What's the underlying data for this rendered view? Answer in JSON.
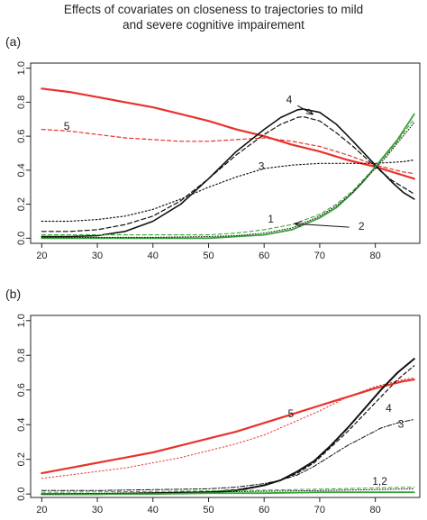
{
  "title_lines": [
    "Effects of covariates on closeness to trajectories to mild",
    "and severe cognitive impairement"
  ],
  "chart_data": [
    {
      "panel": "(a)",
      "type": "line",
      "xlim": [
        18,
        88
      ],
      "ylim": [
        -0.03,
        1.03
      ],
      "xticks": [
        20,
        30,
        40,
        50,
        60,
        70,
        80
      ],
      "yticks": [
        0.0,
        0.2,
        0.4,
        0.6,
        0.8,
        1.0
      ],
      "ytick_labels": [
        "0.0",
        "0.2",
        "0.4",
        "0.6",
        "0.8",
        "1.0"
      ],
      "series": [
        {
          "color": "#e8322b",
          "dash": "solid",
          "width": 2.2,
          "x": [
            20,
            25,
            30,
            35,
            40,
            45,
            50,
            55,
            60,
            65,
            70,
            75,
            80,
            85,
            87
          ],
          "y": [
            0.88,
            0.86,
            0.83,
            0.8,
            0.77,
            0.73,
            0.69,
            0.64,
            0.6,
            0.55,
            0.51,
            0.46,
            0.42,
            0.37,
            0.35
          ]
        },
        {
          "color": "#e8322b",
          "dash": "4,3",
          "width": 1.2,
          "x": [
            20,
            25,
            30,
            35,
            40,
            45,
            50,
            55,
            60,
            65,
            70,
            75,
            80,
            85,
            87
          ],
          "y": [
            0.64,
            0.63,
            0.61,
            0.59,
            0.58,
            0.57,
            0.57,
            0.58,
            0.59,
            0.57,
            0.54,
            0.49,
            0.43,
            0.39,
            0.38
          ]
        },
        {
          "color": "#111111",
          "dash": "solid",
          "width": 1.6,
          "x": [
            20,
            25,
            30,
            35,
            40,
            45,
            50,
            55,
            60,
            63,
            66,
            67,
            70,
            73,
            76,
            80,
            83,
            85,
            87
          ],
          "y": [
            0.01,
            0.01,
            0.015,
            0.04,
            0.1,
            0.2,
            0.35,
            0.51,
            0.64,
            0.71,
            0.755,
            0.76,
            0.74,
            0.67,
            0.57,
            0.43,
            0.33,
            0.27,
            0.23
          ]
        },
        {
          "color": "#111111",
          "dash": "5,3",
          "width": 1.2,
          "x": [
            20,
            25,
            30,
            35,
            40,
            45,
            50,
            55,
            60,
            63,
            66,
            67,
            70,
            73,
            76,
            80,
            83,
            85,
            87
          ],
          "y": [
            0.04,
            0.04,
            0.05,
            0.08,
            0.13,
            0.22,
            0.35,
            0.49,
            0.61,
            0.67,
            0.71,
            0.715,
            0.69,
            0.62,
            0.54,
            0.42,
            0.34,
            0.3,
            0.26
          ]
        },
        {
          "color": "#111111",
          "dash": "1.5,2.5",
          "width": 1.2,
          "x": [
            20,
            25,
            30,
            35,
            40,
            45,
            50,
            55,
            60,
            65,
            70,
            75,
            80,
            85,
            87
          ],
          "y": [
            0.1,
            0.1,
            0.11,
            0.13,
            0.17,
            0.23,
            0.3,
            0.36,
            0.41,
            0.43,
            0.44,
            0.44,
            0.44,
            0.45,
            0.46
          ]
        },
        {
          "color": "#3aa33a",
          "dash": "solid",
          "width": 1.8,
          "x": [
            20,
            30,
            40,
            50,
            55,
            60,
            65,
            70,
            73,
            76,
            78,
            80,
            82,
            84,
            86,
            87
          ],
          "y": [
            0.0,
            0.0,
            0.0,
            0.0,
            0.01,
            0.02,
            0.05,
            0.12,
            0.18,
            0.27,
            0.34,
            0.42,
            0.5,
            0.58,
            0.68,
            0.73
          ]
        },
        {
          "color": "#3aa33a",
          "dash": "4,3",
          "width": 1.1,
          "x": [
            20,
            30,
            40,
            50,
            55,
            60,
            65,
            70,
            73,
            76,
            78,
            80,
            82,
            84,
            86,
            87
          ],
          "y": [
            0.02,
            0.02,
            0.02,
            0.02,
            0.03,
            0.05,
            0.08,
            0.14,
            0.2,
            0.28,
            0.35,
            0.42,
            0.49,
            0.57,
            0.66,
            0.7
          ]
        },
        {
          "color": "#111111",
          "dash": "1,2",
          "width": 1.0,
          "x": [
            20,
            30,
            40,
            50,
            55,
            60,
            65,
            70,
            73,
            76,
            78,
            80,
            82,
            84,
            86,
            87
          ],
          "y": [
            0.005,
            0.005,
            0.005,
            0.01,
            0.015,
            0.03,
            0.06,
            0.13,
            0.19,
            0.27,
            0.34,
            0.41,
            0.48,
            0.56,
            0.64,
            0.68
          ]
        }
      ],
      "annotations": [
        {
          "text": "5",
          "x": 24.5,
          "y": 0.655
        },
        {
          "text": "4",
          "x": 64.5,
          "y": 0.81
        },
        {
          "text": "3",
          "x": 59.5,
          "y": 0.42
        },
        {
          "text": "1",
          "x": 61.2,
          "y": 0.11
        },
        {
          "text": "2",
          "x": 77.5,
          "y": 0.065
        }
      ],
      "arrows": [
        {
          "x1": 66.0,
          "y1": 0.78,
          "x2": 68.7,
          "y2": 0.73
        },
        {
          "x1": 75.3,
          "y1": 0.065,
          "x2": 65.6,
          "y2": 0.085
        }
      ]
    },
    {
      "panel": "(b)",
      "type": "line",
      "xlim": [
        18,
        88
      ],
      "ylim": [
        -0.02,
        1.03
      ],
      "xticks": [
        20,
        30,
        40,
        50,
        60,
        70,
        80
      ],
      "yticks": [
        0.0,
        0.2,
        0.4,
        0.6,
        0.8,
        1.0
      ],
      "ytick_labels": [
        "0.0",
        "0.2",
        "0.4",
        "0.6",
        "0.8",
        "1.0"
      ],
      "series": [
        {
          "color": "#e8322b",
          "dash": "solid",
          "width": 2.2,
          "x": [
            20,
            25,
            30,
            35,
            40,
            45,
            50,
            55,
            60,
            65,
            70,
            75,
            80,
            85,
            87
          ],
          "y": [
            0.12,
            0.15,
            0.18,
            0.21,
            0.24,
            0.28,
            0.32,
            0.36,
            0.41,
            0.46,
            0.51,
            0.56,
            0.61,
            0.65,
            0.66
          ]
        },
        {
          "color": "#e8322b",
          "dash": "1.5,2.5",
          "width": 1.0,
          "x": [
            20,
            25,
            30,
            35,
            40,
            45,
            50,
            55,
            60,
            65,
            70,
            75,
            80,
            85,
            87
          ],
          "y": [
            0.09,
            0.11,
            0.13,
            0.15,
            0.18,
            0.21,
            0.25,
            0.29,
            0.34,
            0.41,
            0.48,
            0.56,
            0.62,
            0.66,
            0.67
          ]
        },
        {
          "color": "#111111",
          "dash": "solid",
          "width": 2.0,
          "x": [
            20,
            30,
            40,
            50,
            55,
            60,
            63,
            66,
            69,
            72,
            75,
            78,
            81,
            84,
            87
          ],
          "y": [
            0.0,
            0.0,
            0.005,
            0.01,
            0.02,
            0.05,
            0.08,
            0.13,
            0.19,
            0.28,
            0.38,
            0.49,
            0.6,
            0.7,
            0.78
          ]
        },
        {
          "color": "#111111",
          "dash": "4,3",
          "width": 1.2,
          "x": [
            20,
            30,
            40,
            50,
            55,
            60,
            63,
            66,
            69,
            72,
            75,
            78,
            81,
            84,
            87
          ],
          "y": [
            0.0,
            0.0,
            0.005,
            0.015,
            0.025,
            0.05,
            0.08,
            0.12,
            0.18,
            0.27,
            0.36,
            0.46,
            0.56,
            0.66,
            0.74
          ]
        },
        {
          "color": "#111111",
          "dash": "5,2,1.5,2",
          "width": 1.0,
          "x": [
            20,
            30,
            40,
            50,
            55,
            60,
            63,
            66,
            69,
            72,
            75,
            78,
            81,
            84,
            87
          ],
          "y": [
            0.02,
            0.02,
            0.025,
            0.03,
            0.04,
            0.06,
            0.08,
            0.11,
            0.16,
            0.22,
            0.28,
            0.33,
            0.38,
            0.41,
            0.43
          ]
        },
        {
          "color": "#3aa33a",
          "dash": "solid",
          "width": 1.8,
          "x": [
            20,
            30,
            40,
            50,
            60,
            70,
            80,
            87
          ],
          "y": [
            0.0,
            0.0,
            0.0,
            0.005,
            0.005,
            0.01,
            0.01,
            0.01
          ]
        },
        {
          "color": "#3aa33a",
          "dash": "4,3",
          "width": 1.0,
          "x": [
            20,
            30,
            40,
            50,
            60,
            70,
            80,
            87
          ],
          "y": [
            0.01,
            0.012,
            0.015,
            0.018,
            0.022,
            0.028,
            0.035,
            0.04
          ]
        },
        {
          "color": "#111111",
          "dash": "1,2",
          "width": 1.0,
          "x": [
            20,
            30,
            40,
            50,
            60,
            70,
            80,
            87
          ],
          "y": [
            0.0,
            0.004,
            0.008,
            0.012,
            0.016,
            0.02,
            0.025,
            0.03
          ]
        }
      ],
      "annotations": [
        {
          "text": "5",
          "x": 64.8,
          "y": 0.46
        },
        {
          "text": "4",
          "x": 82.4,
          "y": 0.49
        },
        {
          "text": "3",
          "x": 84.6,
          "y": 0.4
        },
        {
          "text": "1,2",
          "x": 80.8,
          "y": 0.07
        }
      ],
      "arrows": []
    }
  ]
}
